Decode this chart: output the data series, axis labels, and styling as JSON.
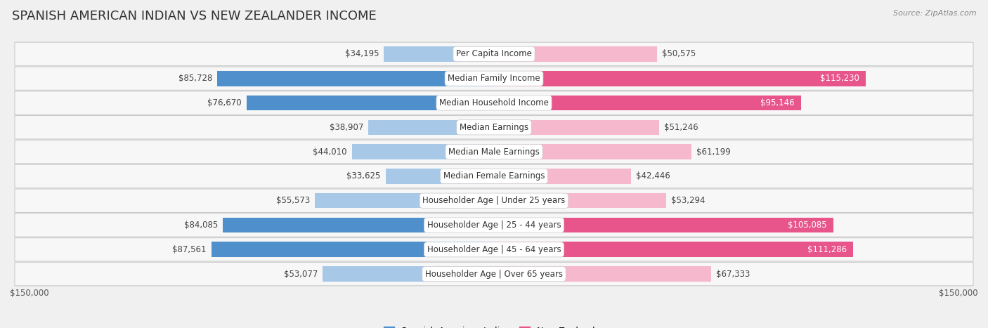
{
  "title": "SPANISH AMERICAN INDIAN VS NEW ZEALANDER INCOME",
  "source": "Source: ZipAtlas.com",
  "categories": [
    "Per Capita Income",
    "Median Family Income",
    "Median Household Income",
    "Median Earnings",
    "Median Male Earnings",
    "Median Female Earnings",
    "Householder Age | Under 25 years",
    "Householder Age | 25 - 44 years",
    "Householder Age | 45 - 64 years",
    "Householder Age | Over 65 years"
  ],
  "spanish_values": [
    34195,
    85728,
    76670,
    38907,
    44010,
    33625,
    55573,
    84085,
    87561,
    53077
  ],
  "nz_values": [
    50575,
    115230,
    95146,
    51246,
    61199,
    42446,
    53294,
    105085,
    111286,
    67333
  ],
  "spanish_labels": [
    "$34,195",
    "$85,728",
    "$76,670",
    "$38,907",
    "$44,010",
    "$33,625",
    "$55,573",
    "$84,085",
    "$87,561",
    "$53,077"
  ],
  "nz_labels": [
    "$50,575",
    "$115,230",
    "$95,146",
    "$51,246",
    "$61,199",
    "$42,446",
    "$53,294",
    "$105,085",
    "$111,286",
    "$67,333"
  ],
  "spanish_color_light": "#a8c8e8",
  "spanish_color_dark": "#4e8fcc",
  "nz_color_light": "#f5b8cc",
  "nz_color_dark": "#e8558a",
  "max_val": 150000,
  "bg_color": "#f0f0f0",
  "row_bg_color": "#f7f7f7",
  "title_fontsize": 13,
  "label_fontsize": 8.5,
  "cat_fontsize": 8.5,
  "val_fontsize": 8.5,
  "legend_spanish": "Spanish American Indian",
  "legend_nz": "New Zealander",
  "axis_tick_label": "$150,000",
  "spanish_dark_threshold": 60000,
  "nz_dark_threshold": 85000
}
